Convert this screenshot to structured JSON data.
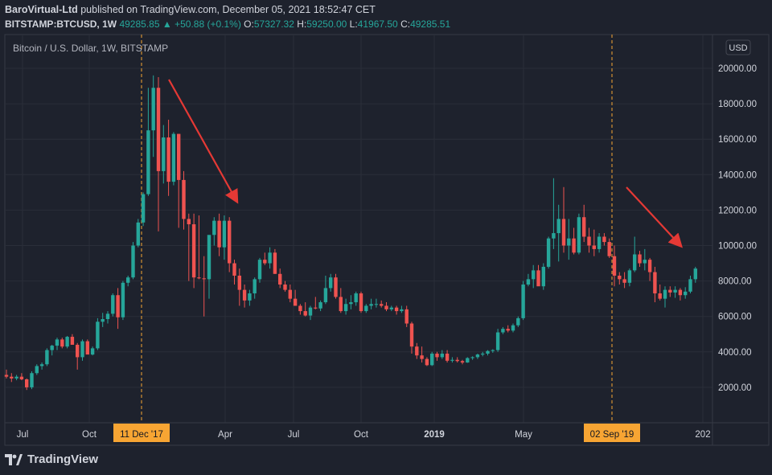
{
  "header": {
    "author": "BaroVirtual-Ltd",
    "published_text": "published on TradingView.com, December 05, 2021 18:52:47 CET",
    "symbol": "BITSTAMP:BTCUSD, 1W",
    "last_price": "49285.85",
    "change": "+50.88 (+0.1%)",
    "o_label": "O:",
    "o_value": "57327.32",
    "h_label": "H:",
    "h_value": "59250.00",
    "l_label": "L:",
    "l_value": "41967.50",
    "c_label": "C:",
    "c_value": "49285.51"
  },
  "colors": {
    "background": "#1e222d",
    "plot_background": "#1e222d",
    "up": "#26a69a",
    "down": "#ef5350",
    "grid": "#2a2e39",
    "marker_line": "#f7a533",
    "marker_bg": "#f7a533",
    "arrow": "#e53935",
    "text": "#d1d4dc"
  },
  "footer": {
    "brand": "TradingView"
  },
  "chart_data": {
    "type": "candlestick",
    "title": "Bitcoin / U.S. Dollar, 1W, BITSTAMP",
    "currency_label": "USD",
    "ylim": [
      0,
      21000
    ],
    "y_ticks": [
      "20000.00",
      "18000.00",
      "16000.00",
      "14000.00",
      "12000.00",
      "10000.00",
      "8000.00",
      "6000.00",
      "4000.00",
      "2000.00"
    ],
    "x_ticks": [
      "Jul",
      "Oct",
      "Apr",
      "Jul",
      "Oct",
      "2019",
      "May",
      "202"
    ],
    "markers": [
      "11 Dec '17",
      "02 Sep '19"
    ],
    "grid": true,
    "candles": [
      [
        2700,
        3000,
        2500,
        2600
      ],
      [
        2600,
        2800,
        2300,
        2500
      ],
      [
        2500,
        2700,
        2400,
        2600
      ],
      [
        2600,
        2800,
        2400,
        2450
      ],
      [
        2450,
        2500,
        1850,
        2000
      ],
      [
        2000,
        2900,
        1900,
        2800
      ],
      [
        2800,
        3300,
        2700,
        3200
      ],
      [
        3200,
        3400,
        3000,
        3300
      ],
      [
        3300,
        4200,
        3200,
        4100
      ],
      [
        4100,
        4400,
        3800,
        4350
      ],
      [
        4350,
        4800,
        4100,
        4700
      ],
      [
        4700,
        4800,
        4200,
        4300
      ],
      [
        4300,
        4900,
        4200,
        4850
      ],
      [
        4850,
        5000,
        4400,
        4400
      ],
      [
        4400,
        4500,
        3000,
        3700
      ],
      [
        3700,
        4700,
        3500,
        4600
      ],
      [
        4600,
        4700,
        3900,
        3850
      ],
      [
        3850,
        4300,
        3800,
        4200
      ],
      [
        4200,
        5900,
        4100,
        5700
      ],
      [
        5700,
        6200,
        5400,
        5850
      ],
      [
        5850,
        6300,
        5600,
        6150
      ],
      [
        6150,
        7300,
        6000,
        7200
      ],
      [
        7200,
        7600,
        5300,
        5950
      ],
      [
        5950,
        8000,
        5800,
        7900
      ],
      [
        7900,
        8300,
        7700,
        8200
      ],
      [
        8200,
        10200,
        8100,
        10000
      ],
      [
        10000,
        11500,
        9900,
        11300
      ],
      [
        11300,
        13000,
        11100,
        12900
      ],
      [
        12900,
        18900,
        12800,
        16500
      ],
      [
        16500,
        19600,
        15000,
        18900
      ],
      [
        18900,
        19500,
        10800,
        14200
      ],
      [
        14200,
        16800,
        13500,
        16100
      ],
      [
        16100,
        17100,
        12800,
        13600
      ],
      [
        13600,
        16400,
        13400,
        16300
      ],
      [
        16300,
        16300,
        11000,
        13700
      ],
      [
        13700,
        14200,
        10900,
        11500
      ],
      [
        11500,
        11800,
        8000,
        11200
      ],
      [
        11200,
        11800,
        7600,
        8200
      ],
      [
        8200,
        11700,
        8100,
        8150
      ],
      [
        8150,
        9400,
        6000,
        8100
      ],
      [
        8100,
        10500,
        7000,
        10600
      ],
      [
        10600,
        11600,
        10000,
        11400
      ],
      [
        11400,
        11800,
        9400,
        9900
      ],
      [
        9900,
        11700,
        9200,
        11400
      ],
      [
        11400,
        11600,
        8500,
        9000
      ],
      [
        9000,
        9200,
        7800,
        8300
      ],
      [
        8300,
        8700,
        6600,
        7500
      ],
      [
        7500,
        7800,
        6500,
        6900
      ],
      [
        6900,
        7500,
        6600,
        7300
      ],
      [
        7300,
        8200,
        7000,
        8100
      ],
      [
        8100,
        9300,
        7900,
        9200
      ],
      [
        9200,
        9600,
        8900,
        9000
      ],
      [
        9000,
        9900,
        8700,
        9600
      ],
      [
        9600,
        9800,
        8400,
        8400
      ],
      [
        8400,
        8700,
        7600,
        7800
      ],
      [
        7800,
        8000,
        7400,
        7500
      ],
      [
        7500,
        7800,
        6800,
        7000
      ],
      [
        7000,
        7500,
        6600,
        6600
      ],
      [
        6600,
        6700,
        6100,
        6300
      ],
      [
        6300,
        6800,
        6000,
        6050
      ],
      [
        6050,
        6600,
        5800,
        6500
      ],
      [
        6500,
        7100,
        6400,
        6450
      ],
      [
        6450,
        6900,
        6300,
        6800
      ],
      [
        6800,
        8300,
        6700,
        7600
      ],
      [
        7600,
        8400,
        7400,
        8200
      ],
      [
        8200,
        8400,
        7000,
        7100
      ],
      [
        7100,
        7600,
        6200,
        6300
      ],
      [
        6300,
        7000,
        6100,
        6700
      ],
      [
        6700,
        7200,
        6400,
        6800
      ],
      [
        6800,
        7400,
        6600,
        7300
      ],
      [
        7300,
        7400,
        6200,
        6300
      ],
      [
        6300,
        6700,
        6200,
        6600
      ],
      [
        6600,
        7000,
        6400,
        6700
      ],
      [
        6700,
        7000,
        6500,
        6700
      ],
      [
        6700,
        6900,
        6500,
        6600
      ],
      [
        6600,
        6800,
        6300,
        6400
      ],
      [
        6400,
        6600,
        6300,
        6500
      ],
      [
        6500,
        6600,
        6100,
        6300
      ],
      [
        6300,
        6600,
        6200,
        6400
      ],
      [
        6400,
        6600,
        5400,
        5600
      ],
      [
        5600,
        5700,
        3900,
        4300
      ],
      [
        4300,
        4500,
        3600,
        3800
      ],
      [
        3800,
        4300,
        3400,
        3600
      ],
      [
        3600,
        3700,
        3200,
        3250
      ],
      [
        3250,
        4000,
        3200,
        3900
      ],
      [
        3900,
        4000,
        3500,
        3700
      ],
      [
        3700,
        4100,
        3600,
        3900
      ],
      [
        3900,
        4100,
        3400,
        3500
      ],
      [
        3500,
        3700,
        3400,
        3550
      ],
      [
        3550,
        3700,
        3400,
        3480
      ],
      [
        3480,
        3550,
        3300,
        3400
      ],
      [
        3400,
        3700,
        3380,
        3650
      ],
      [
        3650,
        3750,
        3550,
        3700
      ],
      [
        3700,
        3900,
        3600,
        3850
      ],
      [
        3850,
        4000,
        3750,
        3900
      ],
      [
        3900,
        4100,
        3800,
        4050
      ],
      [
        4050,
        4150,
        3950,
        4100
      ],
      [
        4100,
        5300,
        4000,
        5100
      ],
      [
        5100,
        5400,
        5000,
        5300
      ],
      [
        5300,
        5500,
        5100,
        5200
      ],
      [
        5200,
        5600,
        5100,
        5500
      ],
      [
        5500,
        6000,
        5400,
        5900
      ],
      [
        5900,
        8000,
        5800,
        7800
      ],
      [
        7800,
        8400,
        7700,
        8100
      ],
      [
        8100,
        8900,
        7600,
        8600
      ],
      [
        8600,
        8900,
        7800,
        7700
      ],
      [
        7700,
        9000,
        7500,
        8800
      ],
      [
        8800,
        10500,
        8700,
        10400
      ],
      [
        10400,
        13800,
        9800,
        10700
      ],
      [
        10700,
        12300,
        9100,
        11500
      ],
      [
        11500,
        13300,
        9600,
        10000
      ],
      [
        10000,
        11500,
        9200,
        10400
      ],
      [
        10400,
        11000,
        9500,
        9600
      ],
      [
        9600,
        11800,
        9500,
        11600
      ],
      [
        11600,
        12300,
        10200,
        10500
      ],
      [
        10500,
        11000,
        9600,
        10000
      ],
      [
        10000,
        10900,
        9400,
        9800
      ],
      [
        9800,
        10700,
        9600,
        10500
      ],
      [
        10500,
        10700,
        10000,
        10200
      ],
      [
        10200,
        10400,
        9300,
        9400
      ],
      [
        9400,
        10000,
        7700,
        8300
      ],
      [
        8300,
        8500,
        7800,
        8100
      ],
      [
        8100,
        8500,
        7600,
        7900
      ],
      [
        7900,
        8700,
        7700,
        8600
      ],
      [
        8600,
        10500,
        8500,
        9500
      ],
      [
        9500,
        9700,
        8800,
        9000
      ],
      [
        9000,
        9800,
        8600,
        9200
      ],
      [
        9200,
        9300,
        8000,
        8500
      ],
      [
        8500,
        8800,
        6800,
        7300
      ],
      [
        7300,
        7800,
        6900,
        7000
      ],
      [
        7000,
        7700,
        6500,
        7500
      ],
      [
        7500,
        7700,
        7100,
        7350
      ],
      [
        7350,
        7700,
        7050,
        7500
      ],
      [
        7500,
        7600,
        6900,
        7200
      ],
      [
        7200,
        7650,
        7000,
        7400
      ],
      [
        7400,
        8300,
        7300,
        8100
      ],
      [
        8100,
        8800,
        7900,
        8700
      ]
    ]
  }
}
